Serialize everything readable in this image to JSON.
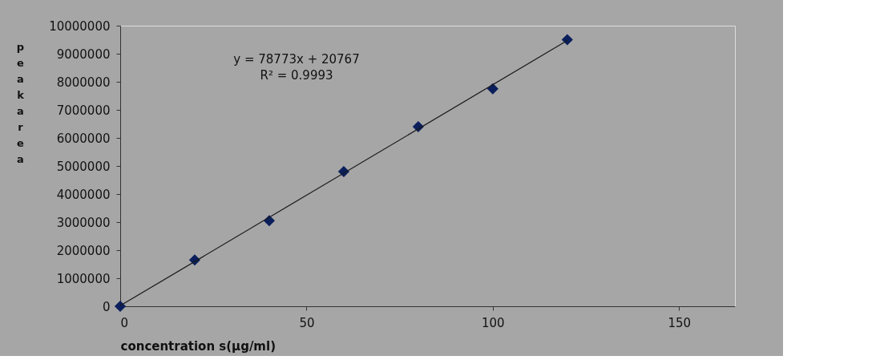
{
  "chart_data": {
    "type": "scatter",
    "xlabel": "concentration s(µg/ml)",
    "ylabel": "peak area",
    "x": [
      0,
      20,
      40,
      60,
      80,
      100,
      120
    ],
    "series": [
      {
        "color": "#0a1f5c",
        "values": [
          0,
          1650000,
          3050000,
          4800000,
          6400000,
          7750000,
          9500000
        ]
      },
      {
        "type": "line",
        "marker": "none",
        "color": "#1a1a1a",
        "x": [
          0,
          120
        ],
        "values": [
          20000,
          9470000
        ]
      }
    ],
    "annotations": [
      "y = 78773x + 20767",
      "R² = 0.9993"
    ],
    "xlim": [
      0,
      165
    ],
    "xticks": [
      0,
      50,
      100,
      150
    ],
    "ylim": [
      0,
      10000000
    ],
    "yticks": [
      0,
      1000000,
      2000000,
      3000000,
      4000000,
      5000000,
      6000000,
      7000000,
      8000000,
      9000000,
      10000000
    ],
    "grid": false,
    "marker": "diamond"
  }
}
